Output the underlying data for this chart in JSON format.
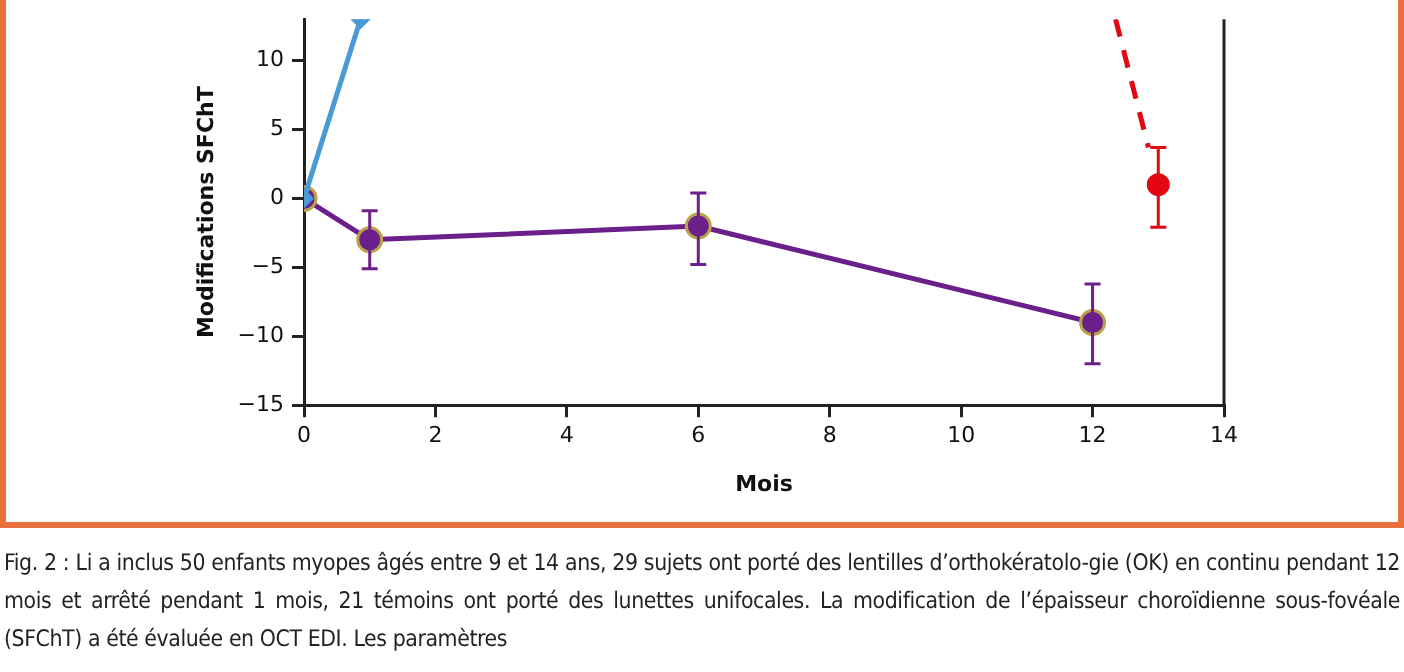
{
  "chart_data": {
    "type": "line",
    "xlabel": "Mois",
    "ylabel": "Modifications SFChT",
    "xlim": [
      0,
      14
    ],
    "xticks": [
      0,
      2,
      4,
      6,
      8,
      10,
      12,
      14
    ],
    "ylim": [
      -15,
      13
    ],
    "yticks": [
      -15,
      -10,
      -5,
      0,
      5,
      10
    ],
    "grid": false,
    "series": [
      {
        "type": "line",
        "color": "#4a9ad6",
        "marker": "diamond",
        "x": [
          0,
          0.86
        ],
        "values": [
          0,
          13
        ]
      },
      {
        "type": "line",
        "color": "#6a1f8a",
        "marker": "circle",
        "x": [
          0,
          1,
          6,
          12
        ],
        "values": [
          0,
          -3,
          -2,
          -9
        ],
        "errors": [
          null,
          [
            -5.1,
            -0.9
          ],
          [
            -4.8,
            0.4
          ],
          [
            -12,
            -6.2
          ]
        ]
      },
      {
        "type": "line",
        "color": "#e30613",
        "marker": "none",
        "line_style": "dashed",
        "x": [
          12.35,
          12.85
        ],
        "values": [
          13,
          3.7
        ]
      },
      {
        "type": "scatter",
        "color": "#e30613",
        "marker": "circle",
        "x": [
          13
        ],
        "values": [
          1
        ],
        "errors": [
          [
            -2.1,
            3.7
          ]
        ]
      }
    ],
    "annotations": [
      "Fig. 2 : Li a inclus 50 enfants myopes âgés entre 9 et 14 ans, 29 sujets ont porté des lentilles d’orthokératolo-gie (OK) en continu pendant 12 mois et arrêté pendant 1 mois, 21 témoins ont porté des lunettes unifocales. La modification de l’épaisseur choroïdienne sous-fovéale (SFChT) a été évaluée en OCT EDI. Les paramètres"
    ]
  }
}
